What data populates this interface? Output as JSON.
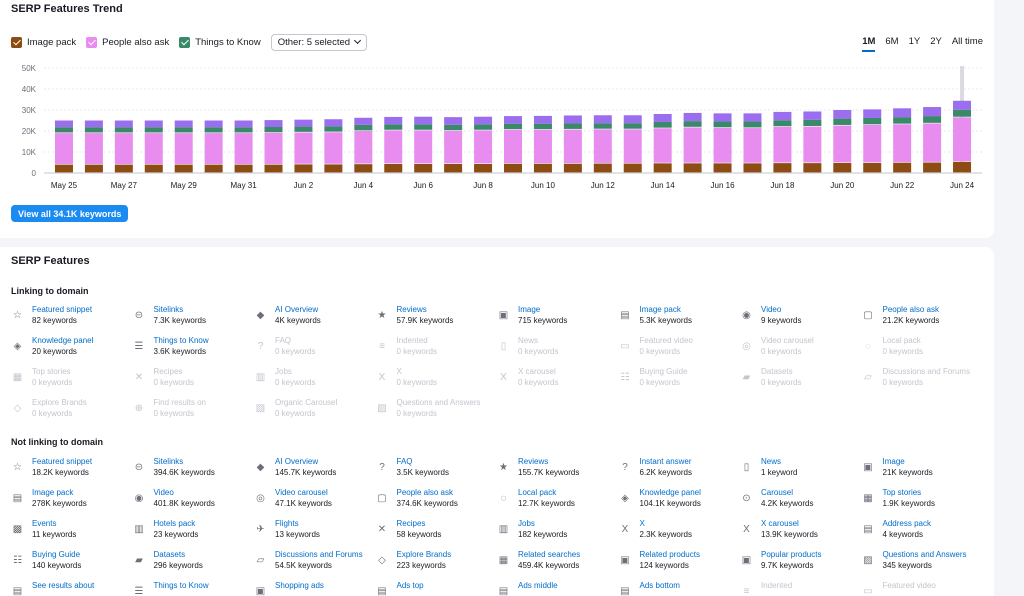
{
  "trend": {
    "title": "SERP Features Trend",
    "legend": [
      {
        "label": "Image pack",
        "color": "#8c4c14"
      },
      {
        "label": "People also ask",
        "color": "#e88cf0"
      },
      {
        "label": "Things to Know",
        "color": "#3a8a6a"
      }
    ],
    "other_dropdown": "Other: 5 selected",
    "ranges": [
      "1M",
      "6M",
      "1Y",
      "2Y",
      "All time"
    ],
    "active_range": "1M",
    "view_all": "View all 34.1K keywords"
  },
  "chart_data": {
    "type": "bar",
    "stacked": true,
    "categories": [
      "May 25",
      "May 26",
      "May 27",
      "May 28",
      "May 29",
      "May 30",
      "May 31",
      "Jun 1",
      "Jun 2",
      "Jun 3",
      "Jun 4",
      "Jun 5",
      "Jun 6",
      "Jun 7",
      "Jun 8",
      "Jun 9",
      "Jun 10",
      "Jun 11",
      "Jun 12",
      "Jun 13",
      "Jun 14",
      "Jun 15",
      "Jun 16",
      "Jun 17",
      "Jun 18",
      "Jun 19",
      "Jun 20",
      "Jun 21",
      "Jun 22",
      "Jun 23",
      "Jun 24"
    ],
    "tick_labels": [
      "May 25",
      "May 27",
      "May 29",
      "May 31",
      "Jun 2",
      "Jun 4",
      "Jun 6",
      "Jun 8",
      "Jun 10",
      "Jun 12",
      "Jun 14",
      "Jun 16",
      "Jun 18",
      "Jun 20",
      "Jun 22",
      "Jun 24"
    ],
    "y_ticks": [
      "0",
      "10K",
      "20K",
      "30K",
      "40K",
      "50K"
    ],
    "ylim": [
      0,
      50000
    ],
    "colors": [
      "#8c4c14",
      "#e88cf0",
      "#3a8a6a",
      "#9b6ef0"
    ],
    "series": [
      {
        "name": "Image pack",
        "values": [
          4000,
          4000,
          4000,
          4000,
          4000,
          4000,
          4000,
          4000,
          4100,
          4100,
          4200,
          4300,
          4300,
          4300,
          4300,
          4400,
          4400,
          4400,
          4500,
          4500,
          4600,
          4600,
          4600,
          4600,
          4700,
          4700,
          4800,
          4800,
          4900,
          5000,
          5300
        ]
      },
      {
        "name": "People also ask",
        "values": [
          15000,
          15000,
          15000,
          15000,
          15000,
          15000,
          15000,
          15100,
          15200,
          15300,
          15800,
          16000,
          16000,
          15800,
          16000,
          16200,
          16200,
          16300,
          16300,
          16300,
          16700,
          17100,
          16900,
          16800,
          17300,
          17400,
          17800,
          18100,
          18300,
          18600,
          21200
        ]
      },
      {
        "name": "Things to Know",
        "values": [
          2800,
          2800,
          2800,
          2800,
          2800,
          2800,
          2800,
          2800,
          2800,
          2800,
          2900,
          2900,
          2900,
          2900,
          2900,
          2900,
          2900,
          2900,
          2900,
          2900,
          3000,
          3000,
          3000,
          3100,
          3100,
          3200,
          3300,
          3300,
          3400,
          3500,
          3600
        ]
      },
      {
        "name": "Other",
        "values": [
          3200,
          3200,
          3200,
          3200,
          3200,
          3200,
          3200,
          3300,
          3300,
          3400,
          3400,
          3500,
          3600,
          3600,
          3600,
          3600,
          3700,
          3800,
          3800,
          3800,
          3800,
          3900,
          3900,
          3900,
          4000,
          4000,
          4100,
          4100,
          4200,
          4300,
          4300
        ]
      }
    ]
  },
  "features": {
    "title": "SERP Features",
    "linking_title": "Linking to domain",
    "not_linking_title": "Not linking to domain",
    "linking": [
      {
        "name": "Featured snippet",
        "kw": "82 keywords",
        "icon": "☆",
        "on": true
      },
      {
        "name": "Sitelinks",
        "kw": "7.3K keywords",
        "icon": "⊝",
        "on": true
      },
      {
        "name": "AI Overview",
        "kw": "4K keywords",
        "icon": "◆",
        "on": true
      },
      {
        "name": "Reviews",
        "kw": "57.9K keywords",
        "icon": "★",
        "on": true
      },
      {
        "name": "Image",
        "kw": "715 keywords",
        "icon": "▣",
        "on": true
      },
      {
        "name": "Image pack",
        "kw": "5.3K keywords",
        "icon": "▤",
        "on": true
      },
      {
        "name": "Video",
        "kw": "9 keywords",
        "icon": "◉",
        "on": true
      },
      {
        "name": "People also ask",
        "kw": "21.2K keywords",
        "icon": "▢",
        "on": true
      },
      {
        "name": "Knowledge panel",
        "kw": "20 keywords",
        "icon": "◈",
        "on": true
      },
      {
        "name": "Things to Know",
        "kw": "3.6K keywords",
        "icon": "☰",
        "on": true
      },
      {
        "name": "FAQ",
        "kw": "0 keywords",
        "icon": "?",
        "on": false
      },
      {
        "name": "Indented",
        "kw": "0 keywords",
        "icon": "≡",
        "on": false
      },
      {
        "name": "News",
        "kw": "0 keywords",
        "icon": "▯",
        "on": false
      },
      {
        "name": "Featured video",
        "kw": "0 keywords",
        "icon": "▭",
        "on": false
      },
      {
        "name": "Video carousel",
        "kw": "0 keywords",
        "icon": "◎",
        "on": false
      },
      {
        "name": "Local pack",
        "kw": "0 keywords",
        "icon": "◌",
        "on": false
      },
      {
        "name": "Top stories",
        "kw": "0 keywords",
        "icon": "▦",
        "on": false
      },
      {
        "name": "Recipes",
        "kw": "0 keywords",
        "icon": "✕",
        "on": false
      },
      {
        "name": "Jobs",
        "kw": "0 keywords",
        "icon": "▥",
        "on": false
      },
      {
        "name": "X",
        "kw": "0 keywords",
        "icon": "X",
        "on": false
      },
      {
        "name": "X carousel",
        "kw": "0 keywords",
        "icon": "X",
        "on": false
      },
      {
        "name": "Buying Guide",
        "kw": "0 keywords",
        "icon": "☷",
        "on": false
      },
      {
        "name": "Datasets",
        "kw": "0 keywords",
        "icon": "▰",
        "on": false
      },
      {
        "name": "Discussions and Forums",
        "kw": "0 keywords",
        "icon": "▱",
        "on": false
      },
      {
        "name": "Explore Brands",
        "kw": "0 keywords",
        "icon": "◇",
        "on": false
      },
      {
        "name": "Find results on",
        "kw": "0 keywords",
        "icon": "⊕",
        "on": false
      },
      {
        "name": "Organic Carousel",
        "kw": "0 keywords",
        "icon": "▧",
        "on": false
      },
      {
        "name": "Questions and Answers",
        "kw": "0 keywords",
        "icon": "▨",
        "on": false
      }
    ],
    "not_linking": [
      {
        "name": "Featured snippet",
        "kw": "18.2K keywords",
        "icon": "☆",
        "on": true
      },
      {
        "name": "Sitelinks",
        "kw": "394.6K keywords",
        "icon": "⊝",
        "on": true
      },
      {
        "name": "AI Overview",
        "kw": "145.7K keywords",
        "icon": "◆",
        "on": true
      },
      {
        "name": "FAQ",
        "kw": "3.5K keywords",
        "icon": "?",
        "on": true
      },
      {
        "name": "Reviews",
        "kw": "155.7K keywords",
        "icon": "★",
        "on": true
      },
      {
        "name": "Instant answer",
        "kw": "6.2K keywords",
        "icon": "?",
        "on": true
      },
      {
        "name": "News",
        "kw": "1 keyword",
        "icon": "▯",
        "on": true
      },
      {
        "name": "Image",
        "kw": "21K keywords",
        "icon": "▣",
        "on": true
      },
      {
        "name": "Image pack",
        "kw": "278K keywords",
        "icon": "▤",
        "on": true
      },
      {
        "name": "Video",
        "kw": "401.8K keywords",
        "icon": "◉",
        "on": true
      },
      {
        "name": "Video carousel",
        "kw": "47.1K keywords",
        "icon": "◎",
        "on": true
      },
      {
        "name": "People also ask",
        "kw": "374.6K keywords",
        "icon": "▢",
        "on": true
      },
      {
        "name": "Local pack",
        "kw": "12.7K keywords",
        "icon": "◌",
        "on": true
      },
      {
        "name": "Knowledge panel",
        "kw": "104.1K keywords",
        "icon": "◈",
        "on": true
      },
      {
        "name": "Carousel",
        "kw": "4.2K keywords",
        "icon": "⊙",
        "on": true
      },
      {
        "name": "Top stories",
        "kw": "1.9K keywords",
        "icon": "▦",
        "on": true
      },
      {
        "name": "Events",
        "kw": "11 keywords",
        "icon": "▩",
        "on": true
      },
      {
        "name": "Hotels pack",
        "kw": "23 keywords",
        "icon": "▥",
        "on": true
      },
      {
        "name": "Flights",
        "kw": "13 keywords",
        "icon": "✈",
        "on": true
      },
      {
        "name": "Recipes",
        "kw": "58 keywords",
        "icon": "✕",
        "on": true
      },
      {
        "name": "Jobs",
        "kw": "182 keywords",
        "icon": "▥",
        "on": true
      },
      {
        "name": "X",
        "kw": "2.3K keywords",
        "icon": "X",
        "on": true
      },
      {
        "name": "X carousel",
        "kw": "13.9K keywords",
        "icon": "X",
        "on": true
      },
      {
        "name": "Address pack",
        "kw": "4 keywords",
        "icon": "▤",
        "on": true
      },
      {
        "name": "Buying Guide",
        "kw": "140 keywords",
        "icon": "☷",
        "on": true
      },
      {
        "name": "Datasets",
        "kw": "296 keywords",
        "icon": "▰",
        "on": true
      },
      {
        "name": "Discussions and Forums",
        "kw": "54.5K keywords",
        "icon": "▱",
        "on": true
      },
      {
        "name": "Explore Brands",
        "kw": "223 keywords",
        "icon": "◇",
        "on": true
      },
      {
        "name": "Related searches",
        "kw": "459.4K keywords",
        "icon": "▦",
        "on": true
      },
      {
        "name": "Related products",
        "kw": "124 keywords",
        "icon": "▣",
        "on": true
      },
      {
        "name": "Popular products",
        "kw": "9.7K keywords",
        "icon": "▣",
        "on": true
      },
      {
        "name": "Questions and Answers",
        "kw": "345 keywords",
        "icon": "▨",
        "on": true
      },
      {
        "name": "See results about",
        "kw": "",
        "icon": "▤",
        "on": true
      },
      {
        "name": "Things to Know",
        "kw": "",
        "icon": "☰",
        "on": true
      },
      {
        "name": "Shopping ads",
        "kw": "",
        "icon": "▣",
        "on": true
      },
      {
        "name": "Ads top",
        "kw": "",
        "icon": "▤",
        "on": true
      },
      {
        "name": "Ads middle",
        "kw": "",
        "icon": "▤",
        "on": true
      },
      {
        "name": "Ads bottom",
        "kw": "",
        "icon": "▤",
        "on": true
      },
      {
        "name": "Indented",
        "kw": "",
        "icon": "≡",
        "on": false
      },
      {
        "name": "Featured video",
        "kw": "",
        "icon": "▭",
        "on": false
      }
    ]
  }
}
